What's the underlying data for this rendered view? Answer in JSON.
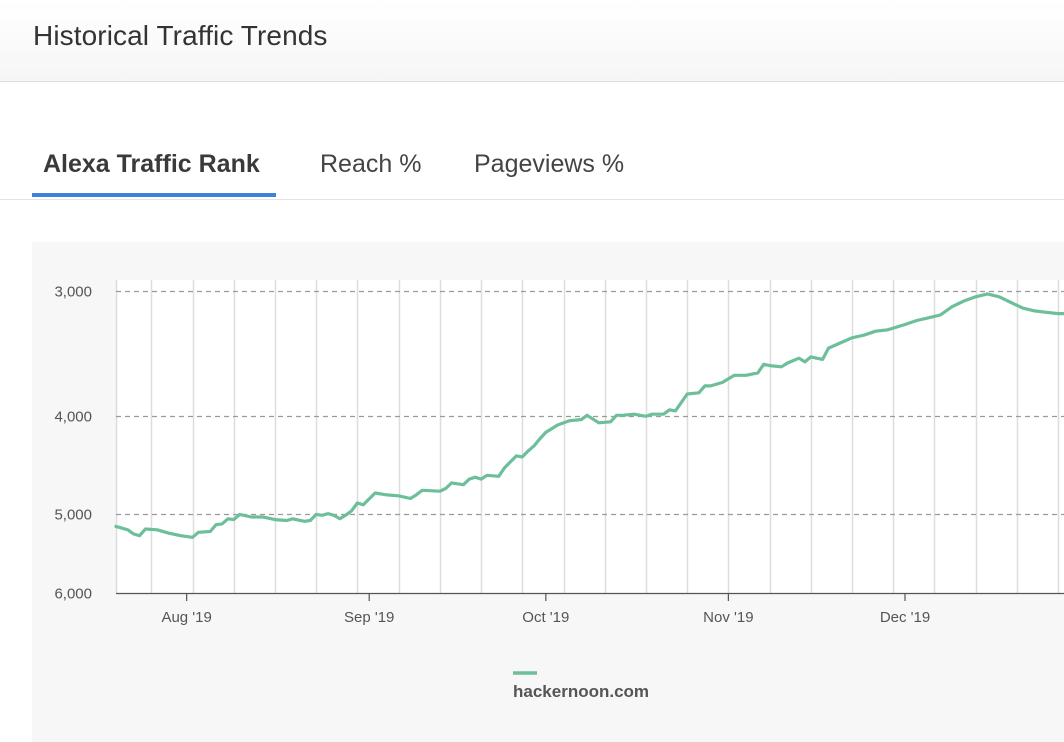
{
  "header": {
    "title": "Historical Traffic Trends"
  },
  "tabs": [
    {
      "label": "Alexa Traffic Rank",
      "active": true
    },
    {
      "label": "Reach %",
      "active": false
    },
    {
      "label": "Pageviews %",
      "active": false
    }
  ],
  "colors": {
    "accent": "#3f80de",
    "series": "#6dbf9a",
    "grid_dashed": "#9a9a9a",
    "grid_vertical": "#dddddd"
  },
  "chart_data": {
    "type": "line",
    "y_scale": "log",
    "y_inverted": true,
    "ylim": [
      6000,
      3000
    ],
    "y_ticks": [
      {
        "value": 3000,
        "label": "3,000"
      },
      {
        "value": 4000,
        "label": "4,000"
      },
      {
        "value": 5000,
        "label": "5,000"
      },
      {
        "value": 6000,
        "label": "6,000"
      }
    ],
    "xlim": [
      "2019-07-20",
      "2019-12-28"
    ],
    "x_ticks": [
      {
        "date": "2019-08-01",
        "label": "Aug '19"
      },
      {
        "date": "2019-09-01",
        "label": "Sep '19"
      },
      {
        "date": "2019-10-01",
        "label": "Oct '19"
      },
      {
        "date": "2019-11-01",
        "label": "Nov '19"
      },
      {
        "date": "2019-12-01",
        "label": "Dec '19"
      }
    ],
    "x_gridlines": [
      "2019-07-26",
      "2019-08-02",
      "2019-08-09",
      "2019-08-16",
      "2019-08-23",
      "2019-08-30",
      "2019-09-06",
      "2019-09-13",
      "2019-09-20",
      "2019-09-27",
      "2019-10-04",
      "2019-10-11",
      "2019-10-18",
      "2019-10-25",
      "2019-11-01",
      "2019-11-08",
      "2019-11-15",
      "2019-11-22",
      "2019-11-29",
      "2019-12-06",
      "2019-12-13",
      "2019-12-20",
      "2019-12-27"
    ],
    "legend": {
      "position": "bottom"
    },
    "series": [
      {
        "name": "hackernoon.com",
        "points": [
          [
            "2019-07-20",
            5150
          ],
          [
            "2019-07-22",
            5190
          ],
          [
            "2019-07-23",
            5240
          ],
          [
            "2019-07-24",
            5260
          ],
          [
            "2019-07-25",
            5180
          ],
          [
            "2019-07-27",
            5190
          ],
          [
            "2019-07-29",
            5230
          ],
          [
            "2019-07-31",
            5260
          ],
          [
            "2019-08-02",
            5280
          ],
          [
            "2019-08-03",
            5220
          ],
          [
            "2019-08-05",
            5210
          ],
          [
            "2019-08-06",
            5130
          ],
          [
            "2019-08-07",
            5120
          ],
          [
            "2019-08-08",
            5060
          ],
          [
            "2019-08-09",
            5070
          ],
          [
            "2019-08-10",
            5010
          ],
          [
            "2019-08-12",
            5040
          ],
          [
            "2019-08-14",
            5040
          ],
          [
            "2019-08-16",
            5070
          ],
          [
            "2019-08-18",
            5080
          ],
          [
            "2019-08-19",
            5060
          ],
          [
            "2019-08-21",
            5090
          ],
          [
            "2019-08-22",
            5080
          ],
          [
            "2019-08-23",
            5010
          ],
          [
            "2019-08-24",
            5020
          ],
          [
            "2019-08-25",
            5000
          ],
          [
            "2019-08-26",
            5020
          ],
          [
            "2019-08-27",
            5060
          ],
          [
            "2019-08-28",
            5020
          ],
          [
            "2019-08-29",
            4970
          ],
          [
            "2019-08-30",
            4880
          ],
          [
            "2019-08-31",
            4900
          ],
          [
            "2019-09-02",
            4770
          ],
          [
            "2019-09-04",
            4790
          ],
          [
            "2019-09-06",
            4800
          ],
          [
            "2019-09-08",
            4830
          ],
          [
            "2019-09-09",
            4790
          ],
          [
            "2019-09-10",
            4740
          ],
          [
            "2019-09-13",
            4750
          ],
          [
            "2019-09-14",
            4720
          ],
          [
            "2019-09-15",
            4660
          ],
          [
            "2019-09-17",
            4680
          ],
          [
            "2019-09-18",
            4620
          ],
          [
            "2019-09-19",
            4600
          ],
          [
            "2019-09-20",
            4620
          ],
          [
            "2019-09-21",
            4580
          ],
          [
            "2019-09-23",
            4590
          ],
          [
            "2019-09-24",
            4500
          ],
          [
            "2019-09-25",
            4440
          ],
          [
            "2019-09-26",
            4380
          ],
          [
            "2019-09-27",
            4390
          ],
          [
            "2019-09-28",
            4330
          ],
          [
            "2019-09-29",
            4280
          ],
          [
            "2019-09-30",
            4210
          ],
          [
            "2019-10-01",
            4150
          ],
          [
            "2019-10-03",
            4080
          ],
          [
            "2019-10-05",
            4040
          ],
          [
            "2019-10-07",
            4030
          ],
          [
            "2019-10-08",
            3990
          ],
          [
            "2019-10-10",
            4060
          ],
          [
            "2019-10-12",
            4050
          ],
          [
            "2019-10-13",
            3990
          ],
          [
            "2019-10-14",
            3990
          ],
          [
            "2019-10-16",
            3980
          ],
          [
            "2019-10-18",
            4000
          ],
          [
            "2019-10-19",
            3980
          ],
          [
            "2019-10-21",
            3980
          ],
          [
            "2019-10-22",
            3940
          ],
          [
            "2019-10-23",
            3950
          ],
          [
            "2019-10-25",
            3800
          ],
          [
            "2019-10-27",
            3790
          ],
          [
            "2019-10-28",
            3730
          ],
          [
            "2019-10-29",
            3730
          ],
          [
            "2019-10-31",
            3700
          ],
          [
            "2019-11-02",
            3640
          ],
          [
            "2019-11-04",
            3640
          ],
          [
            "2019-11-06",
            3620
          ],
          [
            "2019-11-07",
            3550
          ],
          [
            "2019-11-08",
            3560
          ],
          [
            "2019-11-10",
            3570
          ],
          [
            "2019-11-11",
            3540
          ],
          [
            "2019-11-12",
            3520
          ],
          [
            "2019-11-13",
            3500
          ],
          [
            "2019-11-14",
            3530
          ],
          [
            "2019-11-15",
            3490
          ],
          [
            "2019-11-17",
            3510
          ],
          [
            "2019-11-18",
            3420
          ],
          [
            "2019-11-20",
            3380
          ],
          [
            "2019-11-22",
            3340
          ],
          [
            "2019-11-24",
            3320
          ],
          [
            "2019-11-26",
            3290
          ],
          [
            "2019-11-28",
            3280
          ],
          [
            "2019-12-01",
            3240
          ],
          [
            "2019-12-03",
            3210
          ],
          [
            "2019-12-05",
            3190
          ],
          [
            "2019-12-07",
            3170
          ],
          [
            "2019-12-09",
            3110
          ],
          [
            "2019-12-11",
            3070
          ],
          [
            "2019-12-13",
            3040
          ],
          [
            "2019-12-15",
            3020
          ],
          [
            "2019-12-17",
            3040
          ],
          [
            "2019-12-19",
            3080
          ],
          [
            "2019-12-21",
            3120
          ],
          [
            "2019-12-23",
            3140
          ],
          [
            "2019-12-25",
            3150
          ],
          [
            "2019-12-27",
            3160
          ],
          [
            "2019-12-28",
            3160
          ]
        ]
      }
    ]
  }
}
